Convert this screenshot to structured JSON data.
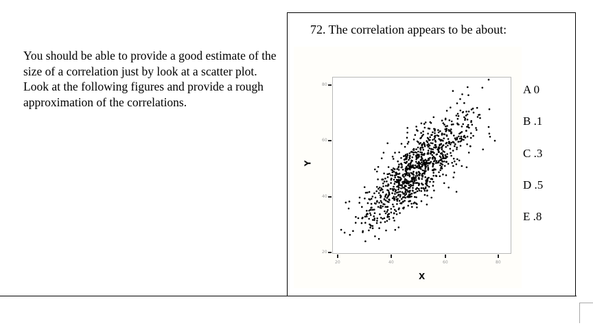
{
  "intro": {
    "text": "You should be able to provide a good estimate of the size of a correlation just by look at a scatter plot.  Look at the following figures and provide a rough approximation of the correlations."
  },
  "question": {
    "number": "72.",
    "text": "72. The correlation appears to be about:",
    "options": [
      {
        "letter": "A",
        "value": "0",
        "label": "A 0"
      },
      {
        "letter": "B",
        "value": ".1",
        "label": "B .1"
      },
      {
        "letter": "C",
        "value": ".3",
        "label": "C .3"
      },
      {
        "letter": "D",
        "value": ".5",
        "label": "D .5"
      },
      {
        "letter": "E",
        "value": ".8",
        "label": "E .8"
      }
    ]
  },
  "chart_data": {
    "type": "scatter",
    "title": "",
    "xlabel": "X",
    "ylabel": "Y",
    "xlim": [
      18,
      82
    ],
    "ylim": [
      18,
      82
    ],
    "x_ticks": [
      20,
      40,
      60,
      80
    ],
    "y_ticks": [
      20,
      40,
      60,
      80
    ],
    "grid": false,
    "legend": null,
    "point_count_approx": 1000,
    "approx_correlation": 0.8,
    "x_mean": 50,
    "y_mean": 50,
    "x_sd": 10,
    "y_sd": 10,
    "seed": 72,
    "point_color": "#000000",
    "frame_color": "#b8b8b8"
  }
}
